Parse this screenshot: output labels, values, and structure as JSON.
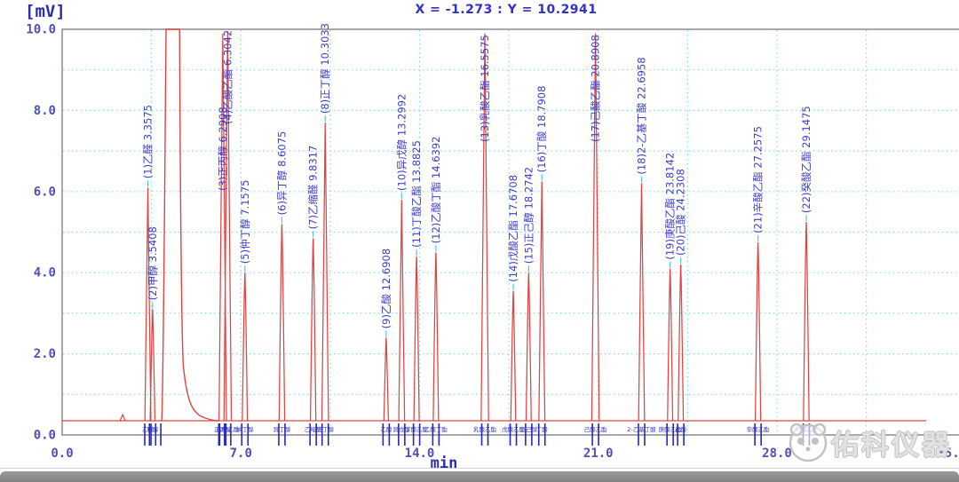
{
  "header": {
    "coordinates": "X = -1.273 : Y = 10.2941"
  },
  "watermark": {
    "text": "佑科仪器",
    "logo": "panda-face-logo"
  },
  "chart_data": {
    "type": "line",
    "subtype": "gc-chromatogram",
    "title": "",
    "xlabel": "min",
    "ylabel": "[mV]",
    "xlim": [
      0,
      35
    ],
    "ylim": [
      0,
      10
    ],
    "x_ticks": [
      {
        "t": 0,
        "label": "0.0"
      },
      {
        "t": 7,
        "label": "7.0"
      },
      {
        "t": 14,
        "label": "14.0"
      },
      {
        "t": 21,
        "label": "21.0"
      },
      {
        "t": 28,
        "label": "28.0"
      },
      {
        "t": 35,
        "label": "35."
      }
    ],
    "y_ticks": [
      {
        "v": 10,
        "label": "10.0"
      },
      {
        "v": 8,
        "label": "8.0"
      },
      {
        "v": 6,
        "label": "6.0"
      },
      {
        "v": 4,
        "label": "4.0"
      },
      {
        "v": 2,
        "label": "2.0"
      },
      {
        "v": 0,
        "label": "0.0"
      }
    ],
    "grid": {
      "on": true,
      "style": "dashed",
      "color": "#7fe0d8",
      "x_interval_min": 3.5,
      "y_interval_mV": 1.0
    },
    "trace_color": "#e04343",
    "peak_label_color": "#3c3ccc",
    "axis_text_color": "#5050b8",
    "baseline_mV": 0.35,
    "peaks": [
      {
        "n": 1,
        "name": "乙醛",
        "rt": "3.3575",
        "height_mV": 6.1
      },
      {
        "n": 2,
        "name": "甲醇",
        "rt": "3.5408",
        "height_mV": 3.1
      },
      {
        "n": 3,
        "name": "正丙醇",
        "rt": "6.2908",
        "height_mV": 9.9
      },
      {
        "n": 4,
        "name": "乙酸乙酯",
        "rt": "6.3042",
        "height_mV": 9.95
      },
      {
        "n": 5,
        "name": "仲丁醇",
        "rt": "7.1575",
        "height_mV": 4.0
      },
      {
        "n": 6,
        "name": "异丁醇",
        "rt": "8.6075",
        "height_mV": 5.2
      },
      {
        "n": 7,
        "name": "乙缩醛",
        "rt": "9.8317",
        "height_mV": 4.85
      },
      {
        "n": 8,
        "name": "正丁醇",
        "rt": "10.3033",
        "height_mV": 7.7
      },
      {
        "n": 9,
        "name": "乙酸",
        "rt": "12.6908",
        "height_mV": 2.4
      },
      {
        "n": 10,
        "name": "异戊醇",
        "rt": "13.2992",
        "height_mV": 5.8
      },
      {
        "n": 11,
        "name": "丁酸乙酯",
        "rt": "13.8825",
        "height_mV": 4.4
      },
      {
        "n": 12,
        "name": "乙酸丁酯",
        "rt": "14.6392",
        "height_mV": 4.5
      },
      {
        "n": 13,
        "name": "乳酸乙酯",
        "rt": "16.5575",
        "height_mV": 9.9
      },
      {
        "n": 14,
        "name": "戊酸乙酯",
        "rt": "17.6708",
        "height_mV": 3.55
      },
      {
        "n": 15,
        "name": "正己醇",
        "rt": "18.2742",
        "height_mV": 4.0
      },
      {
        "n": 16,
        "name": "丁酸",
        "rt": "18.7908",
        "height_mV": 6.25
      },
      {
        "n": 17,
        "name": "己酸乙酯",
        "rt": "20.8908",
        "height_mV": 9.9
      },
      {
        "n": 18,
        "name": "2-乙基丁酸",
        "rt": "22.6958",
        "height_mV": 6.2
      },
      {
        "n": 19,
        "name": "庚酸乙酯",
        "rt": "23.8142",
        "height_mV": 4.1
      },
      {
        "n": 20,
        "name": "己酸",
        "rt": "24.2308",
        "height_mV": 4.2
      },
      {
        "n": 21,
        "name": "辛酸乙酯",
        "rt": "27.2575",
        "height_mV": 4.75
      },
      {
        "n": 22,
        "name": "癸酸乙酯",
        "rt": "29.1475",
        "height_mV": 5.25
      }
    ],
    "clipped_solvent_peak": {
      "rt_start": 3.9,
      "rt_flat_top": [
        4.07,
        4.6
      ],
      "rt_end": 6.1,
      "height_mV": 10,
      "clipped": true
    },
    "minor_unlabeled_peaks": [
      {
        "rt": 2.37,
        "height_mV": 0.5
      }
    ],
    "legend": "none"
  }
}
